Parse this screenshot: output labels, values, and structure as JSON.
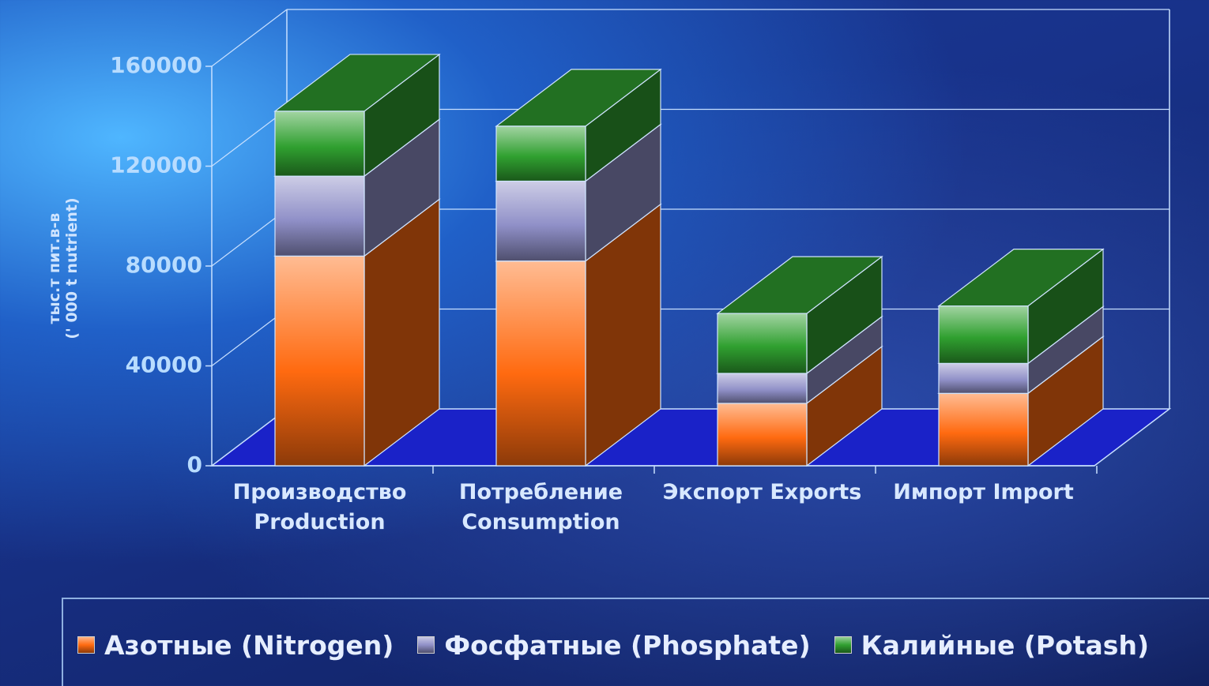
{
  "chart_data": {
    "type": "bar3d_stacked",
    "y_label": "тыс.т пит.в-в\n(' 000 t nutrient)",
    "categories": [
      "Производство\nProduction",
      "Потребление\nConsumption",
      "Экспорт Exports",
      "Импорт  Import"
    ],
    "series": [
      {
        "name": "Азотные (Nitrogen)",
        "color": "#ff6a10",
        "values": [
          84000,
          82000,
          25000,
          29000
        ]
      },
      {
        "name": "Фосфатные (Phosphate)",
        "color": "#9090c8",
        "values": [
          32000,
          32000,
          12000,
          12000
        ]
      },
      {
        "name": "Калийные (Potash)",
        "color": "#30a030",
        "values": [
          26000,
          22000,
          24000,
          23000
        ]
      }
    ],
    "ylim": [
      0,
      160000
    ],
    "yticks": [
      0,
      40000,
      80000,
      120000,
      160000
    ],
    "grid": true,
    "legend": "bottom"
  }
}
